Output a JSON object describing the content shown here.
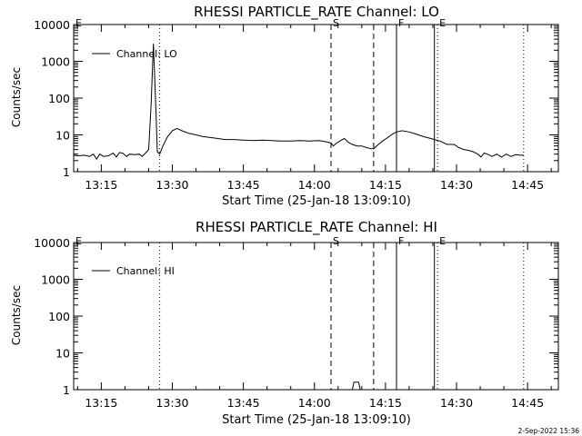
{
  "chart_data": [
    {
      "type": "line",
      "title": "RHESSI PARTICLE_RATE Channel: LO",
      "xlabel": "Start Time (25-Jan-18 13:09:10)",
      "ylabel": "Counts/sec",
      "yscale": "log",
      "ylim": [
        1,
        10000
      ],
      "yticks": [
        "1",
        "10",
        "100",
        "1000",
        "10000"
      ],
      "xlim": [
        "13:09:10",
        "14:51:30"
      ],
      "xticks": [
        "13:15",
        "13:30",
        "13:45",
        "14:00",
        "14:15",
        "14:30",
        "14:45"
      ],
      "legend": {
        "position": "top-left",
        "entries": [
          "Channel: LO"
        ]
      },
      "markers": [
        {
          "label": "E",
          "time": "13:09:10",
          "style": "none"
        },
        {
          "label": "",
          "time": "13:27:20",
          "style": "dotted"
        },
        {
          "label": "S",
          "time": "14:03:30",
          "style": "dashed"
        },
        {
          "label": "",
          "time": "14:12:30",
          "style": "dashed"
        },
        {
          "label": "F",
          "time": "14:17:20",
          "style": "solid"
        },
        {
          "label": "",
          "time": "14:25:20",
          "style": "solid"
        },
        {
          "label": "E",
          "time": "14:26:00",
          "style": "dotted"
        },
        {
          "label": "",
          "time": "14:44:10",
          "style": "dotted"
        }
      ],
      "series": [
        {
          "name": "Channel: LO",
          "points": [
            [
              "13:09:10",
              2.8
            ],
            [
              "13:10:00",
              2.7
            ],
            [
              "13:11:30",
              2.8
            ],
            [
              "13:12:30",
              2.6
            ],
            [
              "13:13:20",
              3.0
            ],
            [
              "13:14:00",
              2.2
            ],
            [
              "13:14:40",
              3.0
            ],
            [
              "13:15:30",
              2.6
            ],
            [
              "13:16:30",
              2.7
            ],
            [
              "13:17:30",
              3.2
            ],
            [
              "13:18:10",
              2.5
            ],
            [
              "13:18:50",
              3.3
            ],
            [
              "13:19:30",
              3.2
            ],
            [
              "13:20:20",
              2.6
            ],
            [
              "13:21:00",
              3.0
            ],
            [
              "13:22:00",
              2.9
            ],
            [
              "13:23:00",
              3.0
            ],
            [
              "13:23:40",
              2.6
            ],
            [
              "13:24:20",
              3.2
            ],
            [
              "13:25:00",
              4.0
            ],
            [
              "13:25:30",
              60
            ],
            [
              "13:26:00",
              3000
            ],
            [
              "13:26:30",
              60
            ],
            [
              "13:26:50",
              3.5
            ],
            [
              "13:27:20",
              3.0
            ],
            [
              "13:28:00",
              5.0
            ],
            [
              "13:29:00",
              9.0
            ],
            [
              "13:30:00",
              13.0
            ],
            [
              "13:31:00",
              15.0
            ],
            [
              "13:32:00",
              13.0
            ],
            [
              "13:33:30",
              11.0
            ],
            [
              "13:35:00",
              10.0
            ],
            [
              "13:36:30",
              9.0
            ],
            [
              "13:38:00",
              8.5
            ],
            [
              "13:39:30",
              8.0
            ],
            [
              "13:41:00",
              7.5
            ],
            [
              "13:43:00",
              7.5
            ],
            [
              "13:45:00",
              7.2
            ],
            [
              "13:47:00",
              7.0
            ],
            [
              "13:49:00",
              7.2
            ],
            [
              "13:51:00",
              7.0
            ],
            [
              "13:53:00",
              6.8
            ],
            [
              "13:55:00",
              6.8
            ],
            [
              "13:57:00",
              7.0
            ],
            [
              "13:59:00",
              6.8
            ],
            [
              "14:01:00",
              7.0
            ],
            [
              "14:02:30",
              6.5
            ],
            [
              "14:03:30",
              6.0
            ],
            [
              "14:04:00",
              5.0
            ],
            [
              "14:04:40",
              6.0
            ],
            [
              "14:05:30",
              7.0
            ],
            [
              "14:06:20",
              8.0
            ],
            [
              "14:07:00",
              6.5
            ],
            [
              "14:08:00",
              5.5
            ],
            [
              "14:09:00",
              5.0
            ],
            [
              "14:10:00",
              5.0
            ],
            [
              "14:11:00",
              4.5
            ],
            [
              "14:12:00",
              4.2
            ],
            [
              "14:12:30",
              4.2
            ],
            [
              "14:13:30",
              5.5
            ],
            [
              "14:14:30",
              7.0
            ],
            [
              "14:15:30",
              8.5
            ],
            [
              "14:16:30",
              10.5
            ],
            [
              "14:17:20",
              12.0
            ],
            [
              "14:18:30",
              13.0
            ],
            [
              "14:20:00",
              12.0
            ],
            [
              "14:21:30",
              10.5
            ],
            [
              "14:23:00",
              9.0
            ],
            [
              "14:24:30",
              8.0
            ],
            [
              "14:25:20",
              7.5
            ],
            [
              "14:26:30",
              6.8
            ],
            [
              "14:28:00",
              5.5
            ],
            [
              "14:29:30",
              5.5
            ],
            [
              "14:30:30",
              4.5
            ],
            [
              "14:31:30",
              4.0
            ],
            [
              "14:32:30",
              3.8
            ],
            [
              "14:33:30",
              3.5
            ],
            [
              "14:34:30",
              3.0
            ],
            [
              "14:35:10",
              2.5
            ],
            [
              "14:35:50",
              3.2
            ],
            [
              "14:36:30",
              3.0
            ],
            [
              "14:37:30",
              2.6
            ],
            [
              "14:38:30",
              3.0
            ],
            [
              "14:39:30",
              2.5
            ],
            [
              "14:40:30",
              3.0
            ],
            [
              "14:41:30",
              2.6
            ],
            [
              "14:42:30",
              2.9
            ],
            [
              "14:43:30",
              2.8
            ],
            [
              "14:44:10",
              2.8
            ]
          ]
        }
      ]
    },
    {
      "type": "line",
      "title": "RHESSI PARTICLE_RATE Channel: HI",
      "xlabel": "Start Time (25-Jan-18 13:09:10)",
      "ylabel": "Counts/sec",
      "yscale": "log",
      "ylim": [
        1,
        10000
      ],
      "yticks": [
        "1",
        "10",
        "100",
        "1000",
        "10000"
      ],
      "xlim": [
        "13:09:10",
        "14:51:30"
      ],
      "xticks": [
        "13:15",
        "13:30",
        "13:45",
        "14:00",
        "14:15",
        "14:30",
        "14:45"
      ],
      "legend": {
        "position": "top-left",
        "entries": [
          "Channel: HI"
        ]
      },
      "markers": [
        {
          "label": "E",
          "time": "13:09:10",
          "style": "none"
        },
        {
          "label": "",
          "time": "13:27:20",
          "style": "dotted"
        },
        {
          "label": "S",
          "time": "14:03:30",
          "style": "dashed"
        },
        {
          "label": "",
          "time": "14:12:30",
          "style": "dashed"
        },
        {
          "label": "F",
          "time": "14:17:20",
          "style": "solid"
        },
        {
          "label": "",
          "time": "14:25:20",
          "style": "solid"
        },
        {
          "label": "E",
          "time": "14:26:00",
          "style": "dotted"
        },
        {
          "label": "",
          "time": "14:44:10",
          "style": "dotted"
        }
      ],
      "series": [
        {
          "name": "Channel: HI",
          "points": [
            [
              "14:08:00",
              1.0
            ],
            [
              "14:08:20",
              1.6
            ],
            [
              "14:09:20",
              1.6
            ],
            [
              "14:09:40",
              1.0
            ]
          ]
        }
      ]
    }
  ],
  "footer": {
    "timestamp": "2-Sep-2022 15:36"
  }
}
